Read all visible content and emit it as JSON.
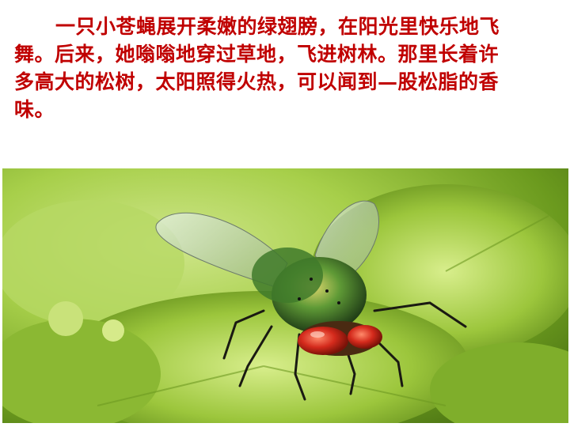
{
  "passage": {
    "lines": [
      "一只小苍蝇展开柔嫩的绿翅膀，在阳光里快乐地飞",
      "舞。后来，她嗡嗡地穿过草地，飞进树林。那里长着许",
      "多高大的松树，太阳照得火热，可以闻到—股松脂的香",
      "味。"
    ]
  },
  "photo": {
    "subject_icon": "green-fly-on-leaf-icon",
    "colors": {
      "leaf": "#9cc63c",
      "fly_body": "#3f7a2a",
      "fly_eye": "#d42a1c"
    }
  }
}
